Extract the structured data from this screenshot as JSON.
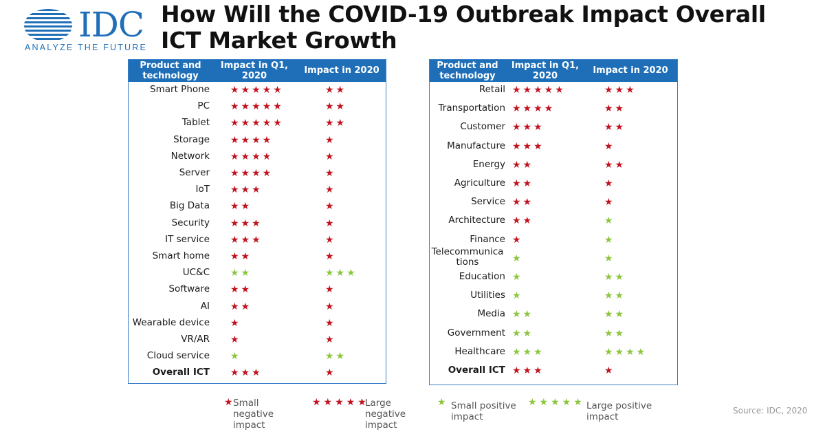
{
  "logo": {
    "text": "IDC",
    "tagline": "ANALYZE THE FUTURE"
  },
  "title": "How Will the COVID-19 Outbreak Impact Overall ICT Market Growth",
  "colors": {
    "header": "#1f6fb8",
    "negative": "#c1121f",
    "positive": "#8cc63f"
  },
  "left_table": {
    "headers": [
      "Product and technology",
      "Impact in Q1, 2020",
      "Impact in 2020"
    ],
    "rows": [
      {
        "name": "Smart Phone",
        "q1": {
          "count": 5,
          "sign": "neg"
        },
        "y2020": {
          "count": 2,
          "sign": "neg"
        }
      },
      {
        "name": "PC",
        "q1": {
          "count": 5,
          "sign": "neg"
        },
        "y2020": {
          "count": 2,
          "sign": "neg"
        }
      },
      {
        "name": "Tablet",
        "q1": {
          "count": 5,
          "sign": "neg"
        },
        "y2020": {
          "count": 2,
          "sign": "neg"
        }
      },
      {
        "name": "Storage",
        "q1": {
          "count": 4,
          "sign": "neg"
        },
        "y2020": {
          "count": 1,
          "sign": "neg"
        }
      },
      {
        "name": "Network",
        "q1": {
          "count": 4,
          "sign": "neg"
        },
        "y2020": {
          "count": 1,
          "sign": "neg"
        }
      },
      {
        "name": "Server",
        "q1": {
          "count": 4,
          "sign": "neg"
        },
        "y2020": {
          "count": 1,
          "sign": "neg"
        }
      },
      {
        "name": "IoT",
        "q1": {
          "count": 3,
          "sign": "neg"
        },
        "y2020": {
          "count": 1,
          "sign": "neg"
        }
      },
      {
        "name": "Big Data",
        "q1": {
          "count": 2,
          "sign": "neg"
        },
        "y2020": {
          "count": 1,
          "sign": "neg"
        }
      },
      {
        "name": "Security",
        "q1": {
          "count": 3,
          "sign": "neg"
        },
        "y2020": {
          "count": 1,
          "sign": "neg"
        }
      },
      {
        "name": "IT service",
        "q1": {
          "count": 3,
          "sign": "neg"
        },
        "y2020": {
          "count": 1,
          "sign": "neg"
        }
      },
      {
        "name": "Smart home",
        "q1": {
          "count": 2,
          "sign": "neg"
        },
        "y2020": {
          "count": 1,
          "sign": "neg"
        }
      },
      {
        "name": "UC&C",
        "q1": {
          "count": 2,
          "sign": "pos"
        },
        "y2020": {
          "count": 3,
          "sign": "pos"
        }
      },
      {
        "name": "Software",
        "q1": {
          "count": 2,
          "sign": "neg"
        },
        "y2020": {
          "count": 1,
          "sign": "neg"
        }
      },
      {
        "name": "AI",
        "q1": {
          "count": 2,
          "sign": "neg"
        },
        "y2020": {
          "count": 1,
          "sign": "neg"
        }
      },
      {
        "name": "Wearable device",
        "q1": {
          "count": 1,
          "sign": "neg"
        },
        "y2020": {
          "count": 1,
          "sign": "neg"
        }
      },
      {
        "name": "VR/AR",
        "q1": {
          "count": 1,
          "sign": "neg"
        },
        "y2020": {
          "count": 1,
          "sign": "neg"
        }
      },
      {
        "name": "Cloud service",
        "q1": {
          "count": 1,
          "sign": "pos"
        },
        "y2020": {
          "count": 2,
          "sign": "pos"
        }
      },
      {
        "name": "Overall ICT",
        "bold": true,
        "q1": {
          "count": 3,
          "sign": "neg"
        },
        "y2020": {
          "count": 1,
          "sign": "neg"
        }
      }
    ]
  },
  "right_table": {
    "headers": [
      "Product and technology",
      "Impact in Q1, 2020",
      "Impact in 2020"
    ],
    "rows": [
      {
        "name": "Retail",
        "q1": {
          "count": 5,
          "sign": "neg"
        },
        "y2020": {
          "count": 3,
          "sign": "neg"
        }
      },
      {
        "name": "Transportation",
        "q1": {
          "count": 4,
          "sign": "neg"
        },
        "y2020": {
          "count": 2,
          "sign": "neg"
        }
      },
      {
        "name": "Customer",
        "q1": {
          "count": 3,
          "sign": "neg"
        },
        "y2020": {
          "count": 2,
          "sign": "neg"
        }
      },
      {
        "name": "Manufacture",
        "q1": {
          "count": 3,
          "sign": "neg"
        },
        "y2020": {
          "count": 1,
          "sign": "neg"
        }
      },
      {
        "name": "Energy",
        "q1": {
          "count": 2,
          "sign": "neg"
        },
        "y2020": {
          "count": 2,
          "sign": "neg"
        }
      },
      {
        "name": "Agriculture",
        "q1": {
          "count": 2,
          "sign": "neg"
        },
        "y2020": {
          "count": 1,
          "sign": "neg"
        }
      },
      {
        "name": "Service",
        "q1": {
          "count": 2,
          "sign": "neg"
        },
        "y2020": {
          "count": 1,
          "sign": "neg"
        }
      },
      {
        "name": "Architecture",
        "q1": {
          "count": 2,
          "sign": "neg"
        },
        "y2020": {
          "count": 1,
          "sign": "pos"
        }
      },
      {
        "name": "Finance",
        "q1": {
          "count": 1,
          "sign": "neg"
        },
        "y2020": {
          "count": 1,
          "sign": "pos"
        }
      },
      {
        "name": "Telecommunica tions",
        "q1": {
          "count": 1,
          "sign": "pos"
        },
        "y2020": {
          "count": 1,
          "sign": "pos"
        }
      },
      {
        "name": "Education",
        "q1": {
          "count": 1,
          "sign": "pos"
        },
        "y2020": {
          "count": 2,
          "sign": "pos"
        }
      },
      {
        "name": "Utilities",
        "q1": {
          "count": 1,
          "sign": "pos"
        },
        "y2020": {
          "count": 2,
          "sign": "pos"
        }
      },
      {
        "name": "Media",
        "q1": {
          "count": 2,
          "sign": "pos"
        },
        "y2020": {
          "count": 2,
          "sign": "pos"
        }
      },
      {
        "name": "Government",
        "q1": {
          "count": 2,
          "sign": "pos"
        },
        "y2020": {
          "count": 2,
          "sign": "pos"
        }
      },
      {
        "name": "Healthcare",
        "q1": {
          "count": 3,
          "sign": "pos"
        },
        "y2020": {
          "count": 4,
          "sign": "pos"
        }
      },
      {
        "name": "Overall ICT",
        "bold": true,
        "q1": {
          "count": 3,
          "sign": "neg"
        },
        "y2020": {
          "count": 1,
          "sign": "neg"
        }
      }
    ]
  },
  "legend": {
    "small_negative": "Small negative impact",
    "large_negative": "Large negative impact",
    "small_positive": "Small positive impact",
    "large_positive": "Large positive impact"
  },
  "source": "Source: IDC, 2020"
}
